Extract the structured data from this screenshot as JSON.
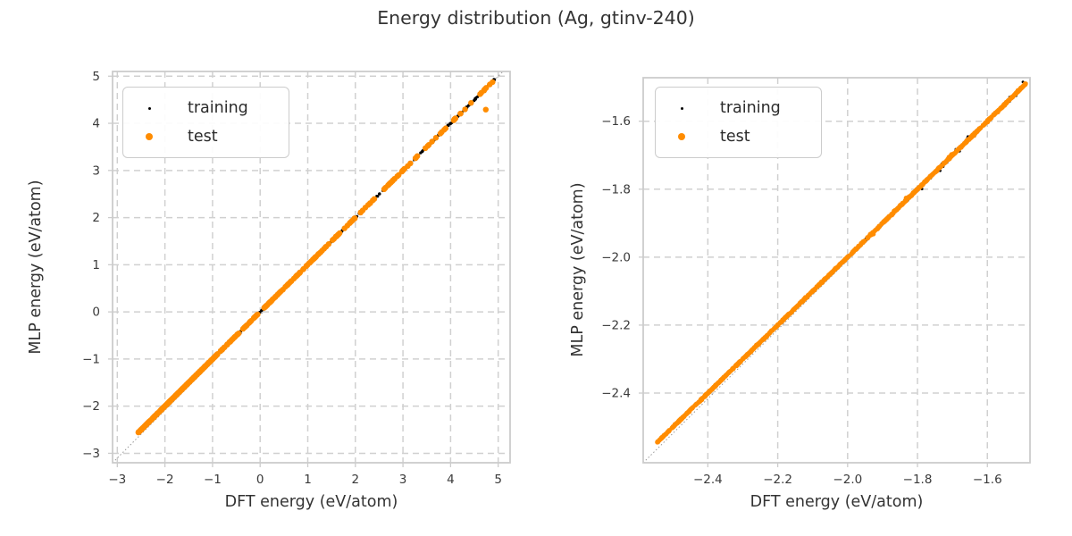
{
  "figure": {
    "title": "Energy distribution (Ag, gtinv-240)",
    "background": "#ffffff",
    "title_color": "#333333"
  },
  "colors": {
    "training": "#000000",
    "test": "#ff8c00",
    "grid": "#d0d0d0",
    "spine": "#cccccc",
    "identity_line": "#999999",
    "tick_text": "#3a3a3a"
  },
  "chart_data": [
    {
      "id": "left",
      "type": "scatter",
      "title": "",
      "xlabel": "DFT energy (eV/atom)",
      "ylabel": "MLP energy (eV/atom)",
      "xlim": [
        -3.1,
        5.25
      ],
      "ylim": [
        -3.2,
        5.1
      ],
      "grid": true,
      "grid_style": "dashed",
      "identity_line": true,
      "legend_position": "upper left",
      "xticks": [
        {
          "v": -3,
          "l": "−3"
        },
        {
          "v": -2,
          "l": "−2"
        },
        {
          "v": -1,
          "l": "−1"
        },
        {
          "v": 0,
          "l": "0"
        },
        {
          "v": 1,
          "l": "1"
        },
        {
          "v": 2,
          "l": "2"
        },
        {
          "v": 3,
          "l": "3"
        },
        {
          "v": 4,
          "l": "4"
        },
        {
          "v": 5,
          "l": "5"
        }
      ],
      "yticks": [
        {
          "v": -3,
          "l": "−3"
        },
        {
          "v": -2,
          "l": "−2"
        },
        {
          "v": -1,
          "l": "−1"
        },
        {
          "v": 0,
          "l": "0"
        },
        {
          "v": 1,
          "l": "1"
        },
        {
          "v": 2,
          "l": "2"
        },
        {
          "v": 3,
          "l": "3"
        },
        {
          "v": 4,
          "l": "4"
        },
        {
          "v": 5,
          "l": "5"
        }
      ],
      "series": [
        {
          "name": "training",
          "color": "#000000",
          "radius": 1.6,
          "seed": 101,
          "relation": "y = x + noise (parity plot along identity line)",
          "x_range": [
            -2.55,
            4.95
          ],
          "segments": [
            {
              "from": -2.55,
              "to": -0.9,
              "count": 200,
              "jitter": 0.005
            },
            {
              "from": -0.9,
              "to": 1.5,
              "count": 130,
              "jitter": 0.008
            },
            {
              "from": 1.5,
              "to": 4.95,
              "count": 170,
              "jitter": 0.025
            }
          ],
          "points": []
        },
        {
          "name": "test",
          "color": "#ff8c00",
          "radius": 3.2,
          "seed": 202,
          "relation": "y = x + noise (parity plot along identity line)",
          "x_range": [
            -2.56,
            4.95
          ],
          "segments": [
            {
              "from": -2.56,
              "to": -0.9,
              "count": 420,
              "jitter": 0.005
            },
            {
              "from": -0.9,
              "to": 1.2,
              "count": 110,
              "jitter": 0.007
            },
            {
              "from": 1.2,
              "to": 3.0,
              "count": 55,
              "jitter": 0.01
            },
            {
              "from": 3.0,
              "to": 4.95,
              "count": 35,
              "jitter": 0.018
            }
          ],
          "points": [
            [
              4.74,
              4.29
            ]
          ]
        }
      ]
    },
    {
      "id": "right",
      "type": "scatter",
      "title": "",
      "xlabel": "DFT energy (eV/atom)",
      "ylabel": "MLP energy (eV/atom)",
      "xlim": [
        -2.585,
        -1.478
      ],
      "ylim": [
        -2.605,
        -1.472
      ],
      "grid": true,
      "grid_style": "dashed",
      "identity_line": true,
      "legend_position": "upper left",
      "xticks": [
        {
          "v": -2.4,
          "l": "−2.4"
        },
        {
          "v": -2.2,
          "l": "−2.2"
        },
        {
          "v": -2.0,
          "l": "−2.0"
        },
        {
          "v": -1.8,
          "l": "−1.8"
        },
        {
          "v": -1.6,
          "l": "−1.6"
        }
      ],
      "yticks": [
        {
          "v": -1.6,
          "l": "−1.6"
        },
        {
          "v": -1.8,
          "l": "−1.8"
        },
        {
          "v": -2.0,
          "l": "−2.0"
        },
        {
          "v": -2.2,
          "l": "−2.2"
        },
        {
          "v": -2.4,
          "l": "−2.4"
        }
      ],
      "series": [
        {
          "name": "training",
          "color": "#000000",
          "radius": 1.5,
          "seed": 303,
          "relation": "y = x + noise (parity plot along identity line)",
          "x_range": [
            -2.545,
            -1.49
          ],
          "segments": [
            {
              "from": -2.545,
              "to": -1.95,
              "count": 160,
              "jitter": 0.003
            },
            {
              "from": -1.95,
              "to": -1.49,
              "count": 220,
              "jitter": 0.007
            },
            {
              "from": -1.85,
              "to": -1.49,
              "count": 55,
              "jitter": 0.02
            }
          ],
          "points": []
        },
        {
          "name": "test",
          "color": "#ff8c00",
          "radius": 2.6,
          "seed": 404,
          "relation": "y = x + noise (parity plot along identity line)",
          "x_range": [
            -2.545,
            -1.49
          ],
          "segments": [
            {
              "from": -2.545,
              "to": -1.49,
              "count": 1000,
              "jitter": 0.0035
            },
            {
              "from": -2.0,
              "to": -1.49,
              "count": 30,
              "jitter": 0.011
            }
          ],
          "points": []
        }
      ]
    }
  ]
}
